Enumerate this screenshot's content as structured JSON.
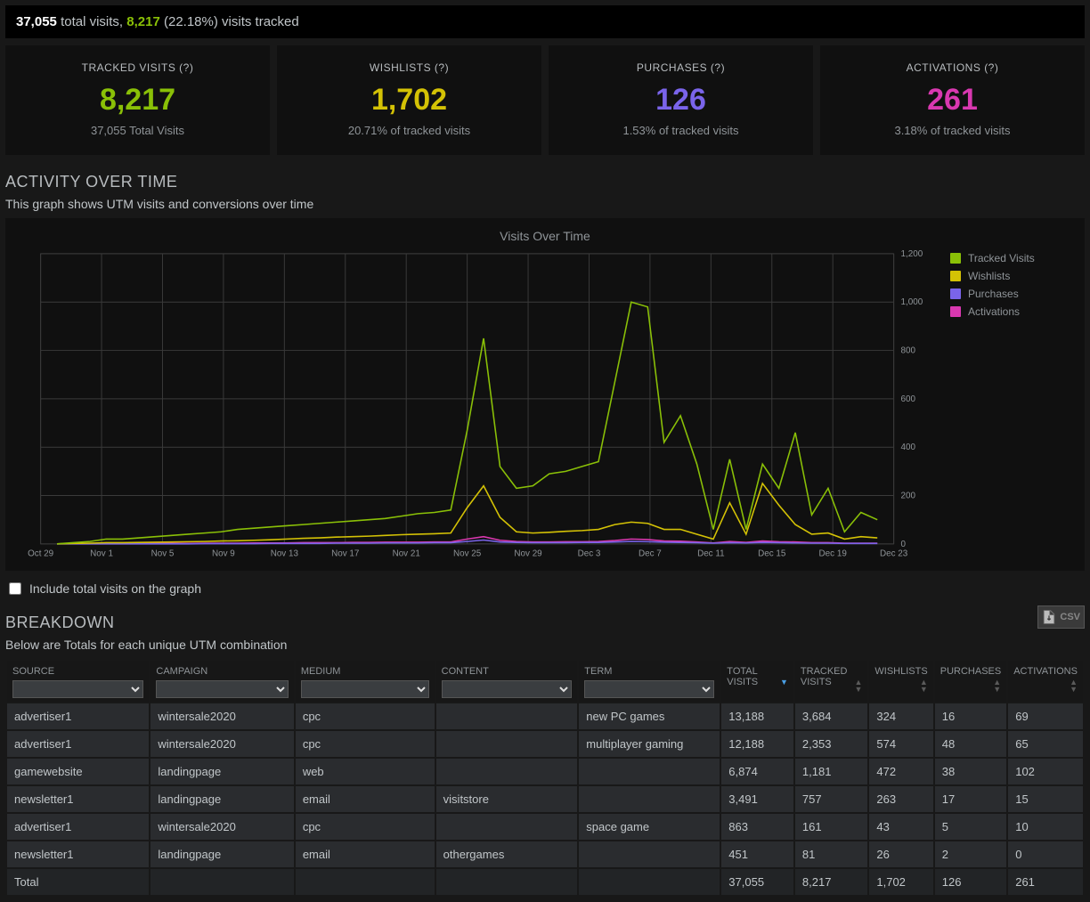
{
  "summary": {
    "total_visits": "37,055",
    "total_label": "total visits,",
    "tracked": "8,217",
    "tracked_pct": "(22.18%)",
    "tracked_label": "visits tracked"
  },
  "cards": [
    {
      "label": "TRACKED VISITS (?)",
      "value": "8,217",
      "sub": "37,055 Total Visits",
      "color": "clr-green"
    },
    {
      "label": "WISHLISTS (?)",
      "value": "1,702",
      "sub": "20.71% of tracked visits",
      "color": "clr-yellow"
    },
    {
      "label": "PURCHASES (?)",
      "value": "126",
      "sub": "1.53% of tracked visits",
      "color": "clr-purple"
    },
    {
      "label": "ACTIVATIONS (?)",
      "value": "261",
      "sub": "3.18% of tracked visits",
      "color": "clr-magenta"
    }
  ],
  "activity": {
    "heading": "ACTIVITY OVER TIME",
    "sub": "This graph shows UTM visits and conversions over time",
    "chart_title": "Visits Over Time",
    "checkbox_label": "Include total visits on the graph"
  },
  "chart": {
    "ylim": [
      0,
      1200
    ],
    "ytick_step": 200,
    "x_labels": [
      "Oct 29",
      "Nov 1",
      "Nov 5",
      "Nov 9",
      "Nov 13",
      "Nov 17",
      "Nov 21",
      "Nov 25",
      "Nov 29",
      "Dec 3",
      "Dec 7",
      "Dec 11",
      "Dec 15",
      "Dec 19",
      "Dec 23"
    ],
    "colors": {
      "tracked": "#8ac007",
      "wishlists": "#d4c205",
      "purchases": "#7a64ea",
      "activations": "#d938b0",
      "grid": "#3a3a3a",
      "bg": "#101010"
    },
    "legend": [
      {
        "label": "Tracked Visits",
        "color": "#8ac007"
      },
      {
        "label": "Wishlists",
        "color": "#d4c205"
      },
      {
        "label": "Purchases",
        "color": "#7a64ea"
      },
      {
        "label": "Activations",
        "color": "#d938b0"
      }
    ],
    "series": {
      "tracked": [
        0,
        5,
        10,
        20,
        20,
        25,
        30,
        35,
        40,
        45,
        50,
        60,
        65,
        70,
        75,
        80,
        85,
        90,
        95,
        100,
        105,
        115,
        125,
        130,
        140,
        470,
        850,
        320,
        230,
        240,
        290,
        300,
        320,
        340,
        670,
        1000,
        980,
        420,
        530,
        330,
        60,
        350,
        60,
        330,
        230,
        460,
        120,
        230,
        50,
        130,
        100
      ],
      "wishlists": [
        0,
        2,
        3,
        5,
        5,
        6,
        7,
        8,
        9,
        10,
        12,
        13,
        15,
        17,
        20,
        23,
        25,
        28,
        30,
        32,
        35,
        38,
        40,
        42,
        45,
        150,
        240,
        110,
        50,
        45,
        48,
        52,
        55,
        60,
        80,
        90,
        85,
        60,
        60,
        40,
        20,
        170,
        40,
        250,
        160,
        80,
        40,
        45,
        20,
        30,
        25
      ],
      "purchases": [
        0,
        0,
        0,
        0,
        0,
        0,
        0,
        0,
        0,
        1,
        1,
        1,
        1,
        2,
        2,
        2,
        2,
        3,
        3,
        3,
        4,
        4,
        4,
        5,
        5,
        10,
        16,
        8,
        6,
        5,
        5,
        5,
        6,
        6,
        8,
        10,
        9,
        7,
        6,
        5,
        3,
        5,
        4,
        6,
        5,
        4,
        3,
        3,
        2,
        2,
        2
      ],
      "activations": [
        0,
        1,
        1,
        1,
        1,
        2,
        2,
        2,
        2,
        3,
        3,
        3,
        4,
        4,
        4,
        5,
        5,
        5,
        6,
        6,
        7,
        7,
        7,
        8,
        8,
        20,
        30,
        15,
        10,
        8,
        8,
        9,
        9,
        10,
        14,
        20,
        18,
        12,
        11,
        8,
        4,
        10,
        6,
        12,
        9,
        8,
        5,
        5,
        3,
        3,
        3
      ]
    }
  },
  "breakdown": {
    "heading": "BREAKDOWN",
    "sub": "Below are Totals for each unique UTM combination",
    "csv_label": "CSV",
    "columns": [
      {
        "label": "SOURCE",
        "filter": true
      },
      {
        "label": "CAMPAIGN",
        "filter": true
      },
      {
        "label": "MEDIUM",
        "filter": true
      },
      {
        "label": "CONTENT",
        "filter": true
      },
      {
        "label": "TERM",
        "filter": true
      },
      {
        "label": "TOTAL VISITS",
        "filter": false,
        "sortable": true,
        "sorted": "desc"
      },
      {
        "label": "TRACKED VISITS",
        "filter": false,
        "sortable": true
      },
      {
        "label": "WISHLISTS",
        "filter": false,
        "sortable": true
      },
      {
        "label": "PURCHASES",
        "filter": false,
        "sortable": true
      },
      {
        "label": "ACTIVATIONS",
        "filter": false,
        "sortable": true
      }
    ],
    "rows": [
      [
        "advertiser1",
        "wintersale2020",
        "cpc",
        "",
        "new PC games",
        "13,188",
        "3,684",
        "324",
        "16",
        "69"
      ],
      [
        "advertiser1",
        "wintersale2020",
        "cpc",
        "",
        "multiplayer gaming",
        "12,188",
        "2,353",
        "574",
        "48",
        "65"
      ],
      [
        "gamewebsite",
        "landingpage",
        "web",
        "",
        "",
        "6,874",
        "1,181",
        "472",
        "38",
        "102"
      ],
      [
        "newsletter1",
        "landingpage",
        "email",
        "visitstore",
        "",
        "3,491",
        "757",
        "263",
        "17",
        "15"
      ],
      [
        "advertiser1",
        "wintersale2020",
        "cpc",
        "",
        "space game",
        "863",
        "161",
        "43",
        "5",
        "10"
      ],
      [
        "newsletter1",
        "landingpage",
        "email",
        "othergames",
        "",
        "451",
        "81",
        "26",
        "2",
        "0"
      ]
    ],
    "total": [
      "Total",
      "",
      "",
      "",
      "",
      "37,055",
      "8,217",
      "1,702",
      "126",
      "261"
    ]
  }
}
